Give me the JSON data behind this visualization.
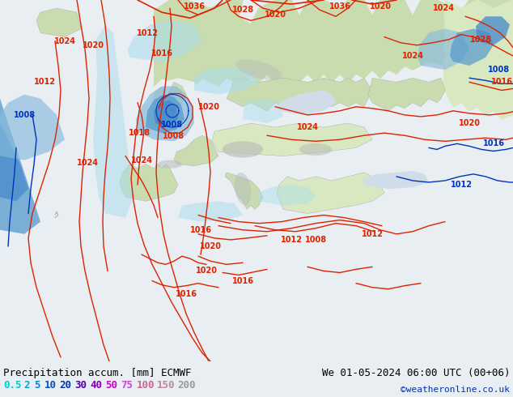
{
  "title_left": "Precipitation accum. [mm] ECMWF",
  "title_right": "We 01-05-2024 06:00 UTC (00+06)",
  "credit": "©weatheronline.co.uk",
  "legend_values": [
    "0.5",
    "2",
    "5",
    "10",
    "20",
    "30",
    "40",
    "50",
    "75",
    "100",
    "150",
    "200"
  ],
  "legend_text_colors": [
    "#00cccc",
    "#00aacc",
    "#0088cc",
    "#0055bb",
    "#0033aa",
    "#5500aa",
    "#8800bb",
    "#cc00cc",
    "#cc44dd",
    "#cc6699",
    "#bb8899",
    "#999999"
  ],
  "ocean_color": "#e8eef2",
  "land_color": "#c8dcb0",
  "land_light_color": "#d8e8c0",
  "precip_light_color": "#aaddee",
  "precip_mid_color": "#88bbdd",
  "precip_dark_color": "#5599cc",
  "precip_blue_color": "#4488cc",
  "bottom_bar_color": "#e8e8e8",
  "isobar_red": "#dd2200",
  "isobar_blue": "#0033bb",
  "label_font": "monospace",
  "font_size_title": 9,
  "font_size_legend": 9,
  "font_size_credit": 8,
  "font_size_isobar": 7,
  "figsize": [
    6.34,
    4.9
  ],
  "dpi": 100
}
